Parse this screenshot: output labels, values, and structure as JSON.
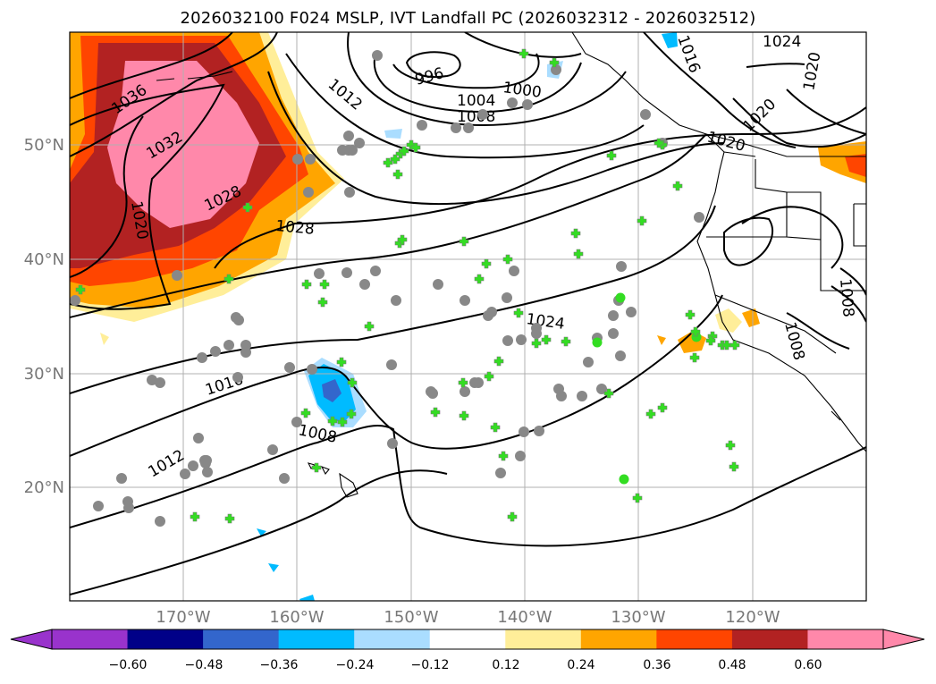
{
  "title": "2026032100 F024 MSLP, IVT Landfall PC (2026032312 - 2026032512)",
  "axes": {
    "lat_ticks": [
      "50°N",
      "40°N",
      "30°N",
      "20°N"
    ],
    "lon_ticks": [
      "170°W",
      "160°W",
      "150°W",
      "140°W",
      "130°W",
      "120°W"
    ]
  },
  "isobar_labels": [
    "1036",
    "1032",
    "1028",
    "1028",
    "1020",
    "1012",
    "996",
    "1004",
    "1008",
    "1000",
    "1016",
    "1024",
    "1020",
    "1020",
    "1020",
    "1024",
    "1016",
    "1012",
    "1008",
    "1008",
    "1008"
  ],
  "colorbar": {
    "ticks": [
      "−0.60",
      "−0.48",
      "−0.36",
      "−0.24",
      "−0.12",
      "0.12",
      "0.24",
      "0.36",
      "0.48",
      "0.60"
    ],
    "colors": [
      "#9933cc",
      "#000088",
      "#3366cc",
      "#00bbff",
      "#aaddff",
      "#ffffff",
      "#ffee99",
      "#ffa500",
      "#ff4500",
      "#b22222",
      "#ff88aa",
      "#ff88aa"
    ]
  },
  "palette": {
    "pink": "#ff88aa",
    "darkred": "#b22222",
    "redorange": "#ff4500",
    "orange": "#ffa500",
    "yellow": "#ffee99",
    "lightblue": "#aaddff",
    "cyan": "#00bbff",
    "blue": "#3366cc",
    "navy": "#000088",
    "marker_fill": "#33dd22",
    "marker_edge": "#888888"
  }
}
